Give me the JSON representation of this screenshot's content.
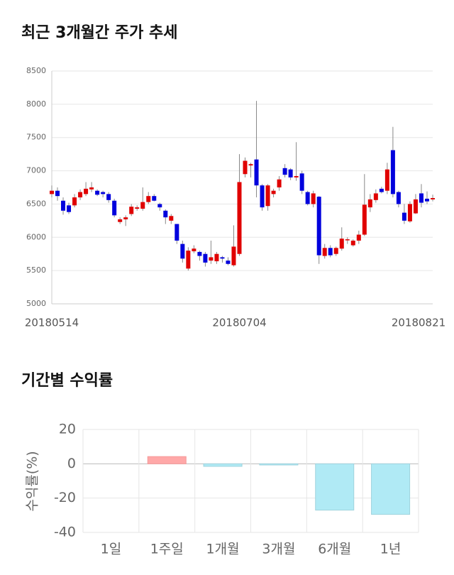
{
  "chart_data": [
    {
      "type": "candlestick",
      "title": "최근 3개월간 주가 추세",
      "categories": [
        "20180514",
        null,
        null,
        null,
        null,
        null,
        null,
        null,
        null,
        null,
        null,
        null,
        null,
        null,
        null,
        null,
        null,
        null,
        null,
        null,
        null,
        null,
        null,
        null,
        null,
        null,
        null,
        null,
        null,
        null,
        null,
        null,
        null,
        "20180704",
        null,
        null,
        null,
        null,
        null,
        null,
        null,
        null,
        null,
        null,
        null,
        null,
        null,
        null,
        null,
        null,
        null,
        null,
        null,
        null,
        null,
        null,
        null,
        null,
        null,
        null,
        null,
        null,
        null,
        null,
        null,
        null,
        null,
        "20180821"
      ],
      "open": [
        6650,
        6700,
        6550,
        6480,
        6480,
        6600,
        6650,
        6720,
        6700,
        6680,
        6650,
        6550,
        6230,
        6270,
        6350,
        6430,
        6430,
        6530,
        6620,
        6500,
        6400,
        6250,
        6200,
        5900,
        5530,
        5790,
        5780,
        5750,
        5650,
        5640,
        5700,
        5650,
        5580,
        5750,
        6950,
        7080,
        7170,
        6780,
        6470,
        6650,
        6750,
        7040,
        7020,
        6900,
        6960,
        6680,
        6500,
        6610,
        5720,
        5840,
        5750,
        5830,
        5960,
        5880,
        5950,
        6040,
        6450,
        6560,
        6730,
        6700,
        7310,
        6680,
        6370,
        6240,
        6360,
        6660,
        6580,
        6570
      ],
      "high": [
        6780,
        6750,
        6600,
        6520,
        6650,
        6720,
        6830,
        6830,
        6720,
        6700,
        6680,
        6580,
        6300,
        6330,
        6500,
        6480,
        6750,
        6680,
        6650,
        6520,
        6420,
        6350,
        6200,
        5950,
        5850,
        5880,
        5800,
        5780,
        5950,
        5780,
        5720,
        5700,
        6180,
        7250,
        7200,
        7120,
        8050,
        6800,
        6800,
        6730,
        6920,
        7100,
        7040,
        7430,
        7000,
        6700,
        6700,
        6620,
        5900,
        5880,
        5860,
        6150,
        6000,
        5970,
        6100,
        6950,
        6650,
        6720,
        6760,
        7120,
        7660,
        6700,
        6500,
        6540,
        6650,
        6800,
        6690,
        6640
      ],
      "low": [
        6600,
        6550,
        6340,
        6350,
        6450,
        6560,
        6620,
        6680,
        6620,
        6600,
        6520,
        6300,
        6200,
        6170,
        6320,
        6400,
        6400,
        6500,
        6540,
        6400,
        6200,
        6200,
        5900,
        5620,
        5500,
        5760,
        5650,
        5560,
        5600,
        5600,
        5620,
        5580,
        5560,
        5720,
        6900,
        6900,
        6600,
        6400,
        6400,
        6600,
        6700,
        6900,
        6860,
        6850,
        6650,
        6480,
        6450,
        5600,
        5680,
        5700,
        5720,
        5800,
        5900,
        5860,
        5900,
        6020,
        6380,
        6520,
        6660,
        6650,
        6600,
        6450,
        6200,
        6220,
        6350,
        6450,
        6500,
        6540
      ],
      "close": [
        6700,
        6620,
        6400,
        6380,
        6600,
        6680,
        6730,
        6750,
        6640,
        6650,
        6560,
        6330,
        6270,
        6300,
        6460,
        6450,
        6530,
        6620,
        6550,
        6450,
        6300,
        6320,
        5950,
        5680,
        5800,
        5830,
        5720,
        5620,
        5700,
        5750,
        5680,
        5600,
        5860,
        6830,
        7150,
        7100,
        6780,
        6450,
        6780,
        6700,
        6870,
        6940,
        6900,
        6920,
        6700,
        6500,
        6660,
        5730,
        5840,
        5730,
        5840,
        5980,
        5970,
        5950,
        6040,
        6490,
        6570,
        6660,
        6680,
        7020,
        6650,
        6500,
        6250,
        6500,
        6570,
        6520,
        6540,
        6590
      ],
      "up_color": "#e00000",
      "down_color": "#0000dd",
      "ylim": [
        5000,
        8500
      ],
      "yticks": [
        5000,
        5500,
        6000,
        6500,
        7000,
        7500,
        8000,
        8500
      ],
      "grid": true
    },
    {
      "type": "bar",
      "title": "기간별 수익률",
      "y_label": "수익률(%)",
      "categories": [
        "1일",
        "1주일",
        "1개월",
        "3개월",
        "6개월",
        "1년"
      ],
      "values": [
        0,
        4.2,
        -1.5,
        -0.7,
        -27,
        -29.5
      ],
      "positive_color": "#ffa8a8",
      "negative_color": "#b0eaf5",
      "ylim": [
        -40,
        20
      ],
      "yticks": [
        20,
        0,
        -20,
        -40
      ],
      "grid": true
    }
  ]
}
